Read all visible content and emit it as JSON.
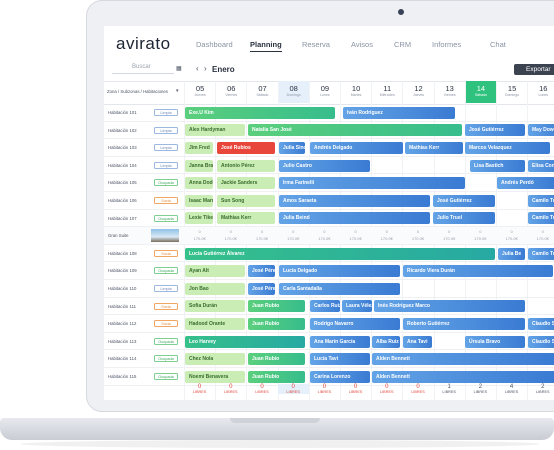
{
  "header": {
    "logo": "avirato",
    "nav": [
      "Dashboard",
      "Planning",
      "Reserva",
      "Avisos",
      "CRM",
      "Informes",
      "Chat"
    ],
    "export": "Exportar"
  },
  "toolbar": {
    "search": "Buscar",
    "month": "Enero"
  },
  "grid": {
    "zone_label": "Zona / Subzonas / Habitaciones",
    "days": [
      {
        "num": "05",
        "name": "Jueves"
      },
      {
        "num": "06",
        "name": "Viernes"
      },
      {
        "num": "07",
        "name": "Sábado"
      },
      {
        "num": "08",
        "name": "Domingo"
      },
      {
        "num": "09",
        "name": "Lunes"
      },
      {
        "num": "10",
        "name": "Martes"
      },
      {
        "num": "11",
        "name": "Miércoles"
      },
      {
        "num": "12",
        "name": "Jueves"
      },
      {
        "num": "13",
        "name": "Viernes"
      },
      {
        "num": "14",
        "name": "Sábado"
      },
      {
        "num": "15",
        "name": "Domingo"
      },
      {
        "num": "16",
        "name": "Lunes"
      }
    ],
    "rooms": [
      {
        "name": "Habitación 101",
        "status": "Limpia",
        "bookings": [
          "Exe.U Kim",
          "Iván Rodríguez"
        ]
      },
      {
        "name": "Habitación 102",
        "status": "Limpia",
        "bookings": [
          "Alex Hardyman",
          "Natalia San José",
          "José Gutiérrez",
          "May Dowell"
        ]
      },
      {
        "name": "Habitación 103",
        "status": "Limpia",
        "bookings": [
          "Jim Fred",
          "José Rubios",
          "Julia Sinc",
          "Andrés Delgado",
          "Mathias Kerr",
          "Marcos Velazquez"
        ]
      },
      {
        "name": "Habitación 104",
        "status": "Limpia",
        "bookings": [
          "Janna Bradok",
          "Antonio Pérez",
          "Julio Castro",
          "Lisa Bastich",
          "Elisa Conti"
        ]
      },
      {
        "name": "Habitación 105",
        "status": "Ocupada",
        "bookings": [
          "Anna Dodo",
          "Jackie Sanders",
          "Irma Farinelli",
          "Andrés Perdó"
        ]
      },
      {
        "name": "Habitación 106",
        "status": "Sucia",
        "bookings": [
          "Isaac Marquin",
          "Sun Song",
          "Amos Saraeta",
          "José Gutiérrez",
          "Camilo Tru"
        ]
      },
      {
        "name": "Habitación 107",
        "status": "Ocupada",
        "bookings": [
          "Lexie Tiker",
          "Mathias Kerr",
          "Julia Beind",
          "Julio Truel",
          "Camilo Tr"
        ]
      },
      {
        "name": "Habitación 108",
        "status": "Sucia",
        "bookings": [
          "Lucía Gutiérrez Álvarez",
          "Julia Be",
          "Camilo Tr"
        ]
      },
      {
        "name": "Habitación 109",
        "status": "Ocupada",
        "bookings": [
          "Ayan Alt",
          "José Pérez",
          "Lucía Delgado",
          "Ricardo Viera Durán"
        ]
      },
      {
        "name": "Habitación 110",
        "status": "Limpia",
        "bookings": [
          "Jon Bao",
          "José Pérez",
          "Carla Santadalla"
        ]
      },
      {
        "name": "Habitación 111",
        "status": "Sucia",
        "bookings": [
          "Sofia Durán",
          "Juan Rubio",
          "Carlos Ruiz",
          "Laura Vélez",
          "Inés Rodríguez Marco"
        ]
      },
      {
        "name": "Habitación 112",
        "status": "Sucia",
        "bookings": [
          "Hadood Orante",
          "Juan Rubio",
          "Rodrigo Navarro",
          "Roberto Gutiérrez",
          "Claudio Sa"
        ]
      },
      {
        "name": "Habitación 113",
        "status": "Ocupada",
        "bookings": [
          "Leo Harvey",
          "Ana Marín García",
          "Alba Ruiz",
          "Ana Tavi",
          "Úrsula Bravo",
          "Claudio Sa"
        ]
      },
      {
        "name": "Habitación 114",
        "status": "Ocupada",
        "bookings": [
          "Chez Nola",
          "Juan Rubio",
          "Lucía Tavi",
          "Alden Bennett"
        ]
      },
      {
        "name": "Habitación 115",
        "status": "Ocupada",
        "bookings": [
          "Noemí Benavera",
          "Juan Rubio",
          "Carina Lorenzo",
          "Alden Bennett"
        ]
      }
    ],
    "suite": {
      "name": "Gran Suite",
      "available": "0",
      "prices": [
        "170.0€",
        "170.0€",
        "170.0€",
        "170.0€",
        "170.0€",
        "170.0€",
        "170.0€",
        "170.0€",
        "170.0€",
        "170.0€",
        "170.0€",
        "170.0€"
      ]
    },
    "free_label": "LIBRES",
    "free": [
      0,
      0,
      0,
      0,
      0,
      0,
      0,
      0,
      1,
      2,
      4,
      2
    ]
  }
}
